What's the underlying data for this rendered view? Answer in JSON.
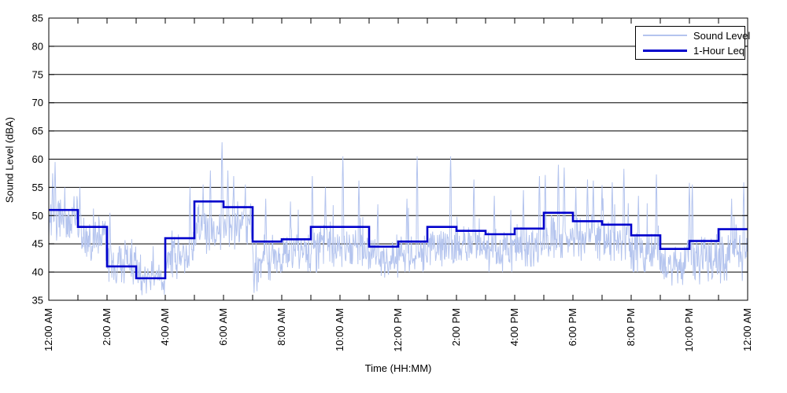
{
  "figure": {
    "background": "#ffffff"
  },
  "chart_data": {
    "type": "line",
    "title": "",
    "xlabel": "Time (HH:MM)",
    "ylabel": "Sound Level (dBA)",
    "ylim": [
      35,
      85
    ],
    "y_ticks": [
      35,
      40,
      45,
      50,
      55,
      60,
      65,
      70,
      75,
      80,
      85
    ],
    "y_tick_labels": [
      "35",
      "40",
      "45",
      "50",
      "55",
      "60",
      "65",
      "70",
      "75",
      "80",
      "85"
    ],
    "x_range_hours": [
      0,
      24
    ],
    "x_tick_every_hours": 1,
    "x_label_every_hours": 2,
    "x_tick_labels": [
      "12:00 AM",
      "2:00 AM",
      "4:00 AM",
      "6:00 AM",
      "8:00 AM",
      "10:00 AM",
      "12:00 PM",
      "2:00 PM",
      "4:00 PM",
      "6:00 PM",
      "8:00 PM",
      "10:00 PM",
      "12:00 AM"
    ],
    "grid": true,
    "legend_position": "top-right",
    "colors": {
      "sound_level": "#b4c4ee",
      "leq": "#0000cc",
      "grid": "#000000",
      "axis": "#000000"
    },
    "series": [
      {
        "name": "Sound Level",
        "kind": "noisy-minute-trace",
        "stroke_width": 1,
        "seed": 1337,
        "per_hour_mean": [
          49.5,
          46.0,
          41.5,
          39.3,
          42.5,
          48.0,
          48.5,
          43.0,
          43.5,
          44.5,
          44.5,
          42.5,
          43.0,
          44.5,
          44.5,
          44.0,
          44.5,
          46.5,
          46.0,
          45.5,
          43.5,
          41.5,
          42.0,
          43.5
        ],
        "per_hour_spread": [
          3.4,
          3.4,
          2.8,
          2.2,
          2.8,
          3.4,
          3.2,
          3.4,
          2.8,
          3.2,
          3.2,
          2.8,
          2.8,
          3.0,
          2.8,
          2.8,
          3.2,
          3.4,
          3.2,
          3.0,
          2.8,
          2.8,
          3.2,
          3.4
        ],
        "per_hour_floor": [
          44.0,
          42.0,
          38.0,
          36.0,
          38.0,
          43.0,
          44.0,
          36.5,
          40.0,
          40.0,
          40.0,
          39.0,
          40.0,
          41.0,
          41.0,
          40.0,
          41.0,
          42.5,
          42.0,
          42.0,
          40.0,
          37.5,
          37.5,
          38.0
        ],
        "spikes": [
          [
            0.13,
            57.5
          ],
          [
            0.22,
            59.5
          ],
          [
            0.55,
            55.0
          ],
          [
            1.07,
            55.0
          ],
          [
            2.1,
            50.5
          ],
          [
            4.85,
            55.0
          ],
          [
            5.3,
            55.5
          ],
          [
            5.55,
            58.0
          ],
          [
            5.95,
            63.0
          ],
          [
            6.15,
            58.0
          ],
          [
            6.35,
            57.0
          ],
          [
            6.75,
            55.5
          ],
          [
            7.45,
            53.0
          ],
          [
            8.3,
            52.5
          ],
          [
            9.05,
            57.0
          ],
          [
            9.5,
            55.0
          ],
          [
            10.1,
            60.5
          ],
          [
            10.65,
            56.2
          ],
          [
            11.3,
            52.0
          ],
          [
            12.3,
            53.0
          ],
          [
            12.65,
            60.5
          ],
          [
            13.8,
            60.5
          ],
          [
            14.6,
            56.4
          ],
          [
            15.3,
            53.5
          ],
          [
            16.3,
            54.5
          ],
          [
            16.85,
            57.0
          ],
          [
            17.05,
            57.2
          ],
          [
            17.5,
            59.0
          ],
          [
            17.7,
            58.5
          ],
          [
            18.1,
            55.0
          ],
          [
            18.5,
            56.4
          ],
          [
            18.7,
            56.2
          ],
          [
            19.0,
            55.4
          ],
          [
            19.35,
            55.9
          ],
          [
            19.75,
            58.3
          ],
          [
            20.25,
            53.5
          ],
          [
            20.87,
            57.3
          ],
          [
            22.0,
            55.8
          ],
          [
            22.1,
            55.5
          ],
          [
            23.45,
            53.0
          ],
          [
            23.87,
            55.9
          ]
        ],
        "dips": [
          [
            2.9,
            37.8
          ],
          [
            3.2,
            35.9
          ],
          [
            3.35,
            36.2
          ],
          [
            3.5,
            36.8
          ],
          [
            7.05,
            36.3
          ],
          [
            7.15,
            36.6
          ],
          [
            7.6,
            38.5
          ],
          [
            21.4,
            37.6
          ],
          [
            21.6,
            38.0
          ],
          [
            22.35,
            37.8
          ],
          [
            23.2,
            38.5
          ]
        ]
      },
      {
        "name": "1-Hour Leq",
        "kind": "hourly-step",
        "stroke_width": 2.6,
        "hours": [
          0,
          1,
          2,
          3,
          4,
          5,
          6,
          7,
          8,
          9,
          10,
          11,
          12,
          13,
          14,
          15,
          16,
          17,
          18,
          19,
          20,
          21,
          22,
          23
        ],
        "values": [
          51.0,
          48.0,
          41.0,
          38.9,
          46.0,
          52.5,
          51.5,
          45.4,
          45.8,
          48.0,
          48.0,
          44.5,
          45.4,
          48.0,
          47.3,
          46.7,
          47.7,
          50.5,
          49.0,
          48.4,
          46.5,
          44.1,
          45.5,
          47.6
        ]
      }
    ]
  }
}
